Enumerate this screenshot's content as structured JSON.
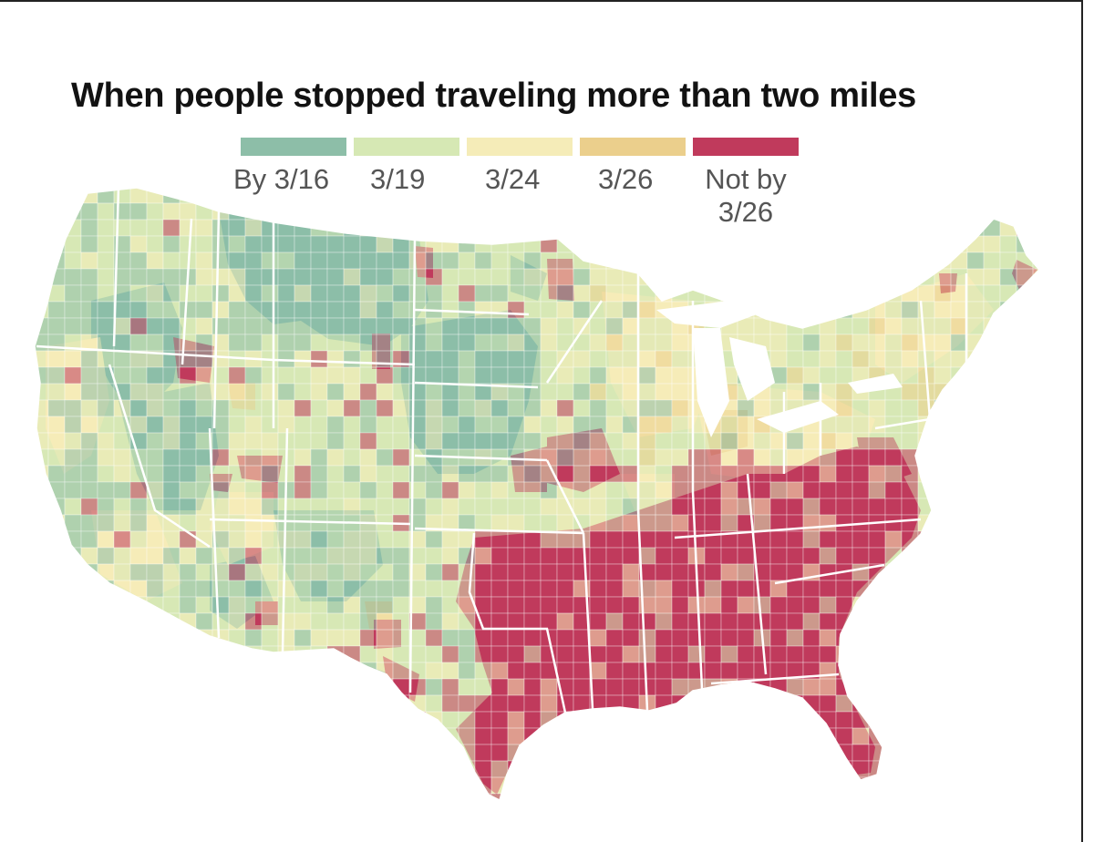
{
  "title": "When people stopped traveling more than two miles",
  "legend": [
    {
      "label": "By 3/16",
      "color": "#8dbea8"
    },
    {
      "label": "3/19",
      "color": "#d6e8b4"
    },
    {
      "label": "3/24",
      "color": "#f5ecb8"
    },
    {
      "label": "3/26",
      "color": "#ebcf8c"
    },
    {
      "label": "Not by 3/26",
      "line1": "Not by",
      "line2": "3/26",
      "color": "#c03a5c"
    }
  ],
  "colors": {
    "border": "#ffffff",
    "background": "#ffffff"
  }
}
